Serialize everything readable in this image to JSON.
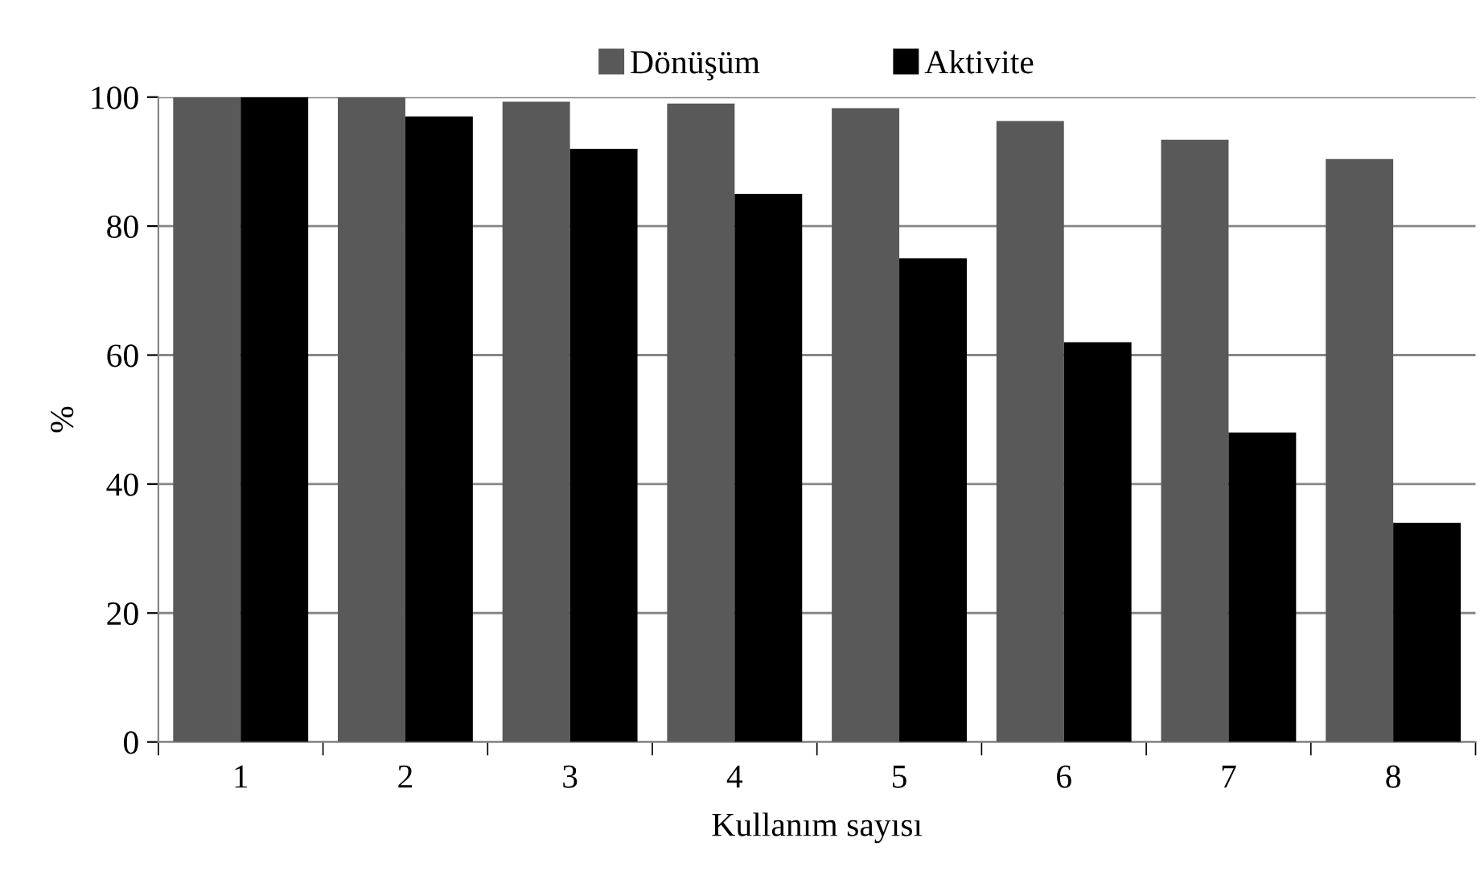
{
  "chart_data": {
    "type": "bar",
    "xlabel": "Kullanım sayısı",
    "ylabel": "%",
    "categories": [
      "1",
      "2",
      "3",
      "4",
      "5",
      "6",
      "7",
      "8"
    ],
    "series": [
      {
        "name": "Dönüşüm",
        "color": "#595959",
        "values": [
          100,
          100,
          99.3,
          99,
          98.3,
          96.3,
          93.4,
          90.4
        ]
      },
      {
        "name": "Aktivite",
        "color": "#000000",
        "values": [
          100,
          97,
          92,
          85,
          75,
          62,
          48,
          34
        ]
      }
    ],
    "ylim": [
      0,
      100
    ],
    "yticks": [
      0,
      20,
      40,
      60,
      80,
      100
    ],
    "grid": "y",
    "legend": "top"
  }
}
